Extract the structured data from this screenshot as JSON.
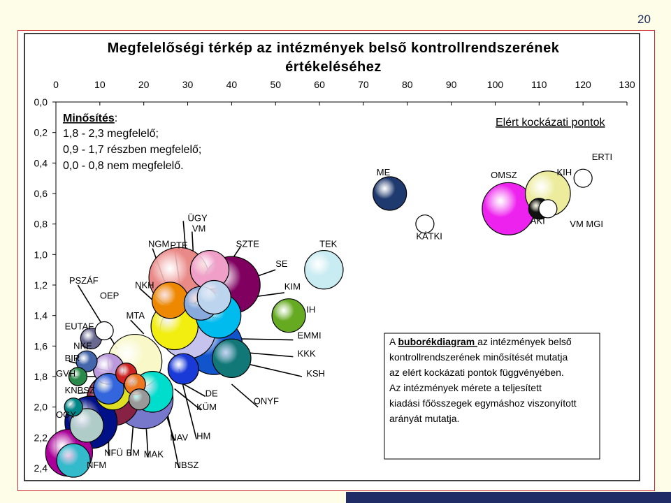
{
  "page_number": "20",
  "chart_data": {
    "type": "scatter",
    "title_line1": "Megfelelőségi térkép az intézmények belső kontrollrendszerének",
    "title_line2": "értékeléséhez",
    "x_ticks": [
      "0",
      "10",
      "20",
      "30",
      "40",
      "50",
      "60",
      "70",
      "80",
      "90",
      "100",
      "110",
      "120",
      "130"
    ],
    "y_ticks": [
      "0,0",
      "0,2",
      "0,4",
      "0,6",
      "0,8",
      "1,0",
      "1,2",
      "1,4",
      "1,6",
      "1,8",
      "2,0",
      "2,2",
      "2,4"
    ],
    "xlim": [
      0,
      130
    ],
    "ylim": [
      0,
      2.4
    ],
    "y_axis_inverted": true,
    "grid": false,
    "legend_box": {
      "title": "Minősítés",
      "title_suffix": ":",
      "lines": [
        "1,8 - 2,3 megfelelő;",
        "0,9 - 1,7 részben megfelelő;",
        "0,0 - 0,8 nem megfelelő."
      ]
    },
    "x_axis_title": "Elért kockázati pontok",
    "annotation": {
      "pre": "A ",
      "underlined": "buborékdiagram ",
      "post": "az intézmények belső",
      "lines": [
        "kontrollrendszerének minősítését mutatja",
        "az elért kockázati pontok függvényében.",
        "Az intézmények mérete a teljesített",
        "kiadási főösszegek egymáshoz viszonyított",
        "arányát mutatja."
      ]
    },
    "bubbles": [
      {
        "x": 76,
        "y": 0.6,
        "size": 5,
        "color": "#1f3a6e"
      },
      {
        "x": 112,
        "y": 0.6,
        "size": 10,
        "color": "#ecec9c"
      },
      {
        "x": 103,
        "y": 0.7,
        "size": 14,
        "color": "#ee22ee"
      },
      {
        "x": 110,
        "y": 0.7,
        "size": 3,
        "color": "#111111"
      },
      {
        "x": 120,
        "y": 0.5,
        "size": 2,
        "color": "#ffffff"
      },
      {
        "x": 112,
        "y": 0.7,
        "size": 2,
        "color": "#ffffff"
      },
      {
        "x": 84,
        "y": 0.8,
        "size": 2,
        "color": "#ffffff"
      },
      {
        "x": 61,
        "y": 1.1,
        "size": 7,
        "color": "#c8ecf2"
      },
      {
        "x": 40,
        "y": 1.2,
        "size": 17,
        "color": "#800060"
      },
      {
        "x": 36,
        "y": 1.6,
        "size": 17,
        "color": "#1055cc"
      },
      {
        "x": 28,
        "y": 1.15,
        "size": 19,
        "color": "#ea8a88"
      },
      {
        "x": 35,
        "y": 1.1,
        "size": 7,
        "color": "#f0a0c8"
      },
      {
        "x": 30,
        "y": 1.5,
        "size": 16,
        "color": "#c6c4ee"
      },
      {
        "x": 37,
        "y": 1.4,
        "size": 10,
        "color": "#00bbee"
      },
      {
        "x": 26,
        "y": 1.3,
        "size": 6,
        "color": "#ee8800"
      },
      {
        "x": 33,
        "y": 1.32,
        "size": 5,
        "color": "#88aadd"
      },
      {
        "x": 53,
        "y": 1.4,
        "size": 5,
        "color": "#66aa22"
      },
      {
        "x": 40,
        "y": 1.68,
        "size": 7,
        "color": "#117777"
      },
      {
        "x": 27,
        "y": 1.47,
        "size": 11,
        "color": "#f2ee10"
      },
      {
        "x": 18,
        "y": 1.7,
        "size": 15,
        "color": "#f8f8c8"
      },
      {
        "x": 20,
        "y": 1.95,
        "size": 18,
        "color": "#7777cc"
      },
      {
        "x": 13,
        "y": 1.95,
        "size": 14,
        "color": "#882244"
      },
      {
        "x": 8,
        "y": 2.1,
        "size": 14,
        "color": "#001188"
      },
      {
        "x": 12,
        "y": 1.75,
        "size": 4,
        "color": "#bb99dd"
      },
      {
        "x": 16,
        "y": 1.78,
        "size": 3,
        "color": "#cc2222"
      },
      {
        "x": 22,
        "y": 1.9,
        "size": 8,
        "color": "#00ddcc"
      },
      {
        "x": 18,
        "y": 1.85,
        "size": 3,
        "color": "#ee7722"
      },
      {
        "x": 7,
        "y": 1.7,
        "size": 3,
        "color": "#4466aa"
      },
      {
        "x": 4,
        "y": 2.0,
        "size": 2,
        "color": "#008888"
      },
      {
        "x": 13,
        "y": 1.9,
        "size": 6,
        "color": "#dede22"
      },
      {
        "x": 12,
        "y": 1.88,
        "size": 4,
        "color": "#3366dd"
      },
      {
        "x": 19,
        "y": 1.95,
        "size": 3,
        "color": "#999999"
      },
      {
        "x": 7,
        "y": 2.12,
        "size": 5,
        "color": "#b0ccc8"
      },
      {
        "x": 3,
        "y": 2.3,
        "size": 11,
        "color": "#aa0099"
      },
      {
        "x": 4,
        "y": 2.35,
        "size": 5,
        "color": "#33bbcc"
      },
      {
        "x": 29,
        "y": 1.75,
        "size": 4,
        "color": "#1a3ad8"
      },
      {
        "x": 8,
        "y": 1.55,
        "size": 3,
        "color": "#696890"
      },
      {
        "x": 11,
        "y": 1.5,
        "size": 2,
        "color": "#ffffff"
      },
      {
        "x": 36,
        "y": 1.28,
        "size": 5,
        "color": "#bcd4ee"
      },
      {
        "x": 5,
        "y": 1.8,
        "size": 2,
        "color": "#2a8a4a"
      }
    ],
    "labels": [
      {
        "text": "ME",
        "x": 73,
        "y": 0.48
      },
      {
        "text": "OMSZ",
        "x": 99,
        "y": 0.5
      },
      {
        "text": "KIH",
        "x": 114,
        "y": 0.48
      },
      {
        "text": "ERTI",
        "x": 122,
        "y": 0.38
      },
      {
        "text": "KÁTKI",
        "x": 82,
        "y": 0.9
      },
      {
        "text": "AKI",
        "x": 108,
        "y": 0.8
      },
      {
        "text": "VM MGI",
        "x": 117,
        "y": 0.82
      },
      {
        "text": "ÜGY",
        "x": 30,
        "y": 0.78
      },
      {
        "text": "VM",
        "x": 31,
        "y": 0.85
      },
      {
        "text": "NGM",
        "x": 21,
        "y": 0.95
      },
      {
        "text": "PTE",
        "x": 26,
        "y": 0.96
      },
      {
        "text": "SZTE",
        "x": 41,
        "y": 0.95
      },
      {
        "text": "TEK",
        "x": 60,
        "y": 0.95
      },
      {
        "text": "SE",
        "x": 50,
        "y": 1.08
      },
      {
        "text": "KIM",
        "x": 52,
        "y": 1.23
      },
      {
        "text": "IH",
        "x": 57,
        "y": 1.38
      },
      {
        "text": "EMMI",
        "x": 55,
        "y": 1.55
      },
      {
        "text": "KKK",
        "x": 55,
        "y": 1.67
      },
      {
        "text": "KSH",
        "x": 57,
        "y": 1.8
      },
      {
        "text": "PSZÁF",
        "x": 3,
        "y": 1.19
      },
      {
        "text": "OEP",
        "x": 10,
        "y": 1.29
      },
      {
        "text": "NKH",
        "x": 18,
        "y": 1.22
      },
      {
        "text": "MTA",
        "x": 16,
        "y": 1.42
      },
      {
        "text": "EUTAF",
        "x": 2,
        "y": 1.49
      },
      {
        "text": "NKE",
        "x": 4,
        "y": 1.62
      },
      {
        "text": "BIR",
        "x": 2,
        "y": 1.7
      },
      {
        "text": "GVH",
        "x": 0,
        "y": 1.8
      },
      {
        "text": "KNBSZ",
        "x": 2,
        "y": 1.91
      },
      {
        "text": "OGY",
        "x": 0,
        "y": 2.07
      },
      {
        "text": "NFÜ",
        "x": 11,
        "y": 2.32
      },
      {
        "text": "BM",
        "x": 16,
        "y": 2.32
      },
      {
        "text": "MAK",
        "x": 20,
        "y": 2.33
      },
      {
        "text": "NFM",
        "x": 7,
        "y": 2.4
      },
      {
        "text": "NBSZ",
        "x": 27,
        "y": 2.4
      },
      {
        "text": "NAV",
        "x": 26,
        "y": 2.22
      },
      {
        "text": "HM",
        "x": 32,
        "y": 2.21
      },
      {
        "text": "DE",
        "x": 34,
        "y": 1.93
      },
      {
        "text": "KÜM",
        "x": 32,
        "y": 2.02
      },
      {
        "text": "ONYF",
        "x": 45,
        "y": 1.98
      }
    ],
    "leader_lines": [
      {
        "x1": 22,
        "y1": 0.96,
        "x2": 26,
        "y2": 1.28
      },
      {
        "x1": 27,
        "y1": 0.96,
        "x2": 29,
        "y2": 1.35
      },
      {
        "x1": 29,
        "y1": 0.78,
        "x2": 31,
        "y2": 1.5
      },
      {
        "x1": 31,
        "y1": 0.85,
        "x2": 32,
        "y2": 1.4
      },
      {
        "x1": 42,
        "y1": 0.95,
        "x2": 35,
        "y2": 1.25
      },
      {
        "x1": 50,
        "y1": 1.1,
        "x2": 43,
        "y2": 1.17
      },
      {
        "x1": 52,
        "y1": 1.25,
        "x2": 34,
        "y2": 1.32
      },
      {
        "x1": 56,
        "y1": 1.38,
        "x2": 54,
        "y2": 1.4
      },
      {
        "x1": 54,
        "y1": 1.56,
        "x2": 37,
        "y2": 1.55
      },
      {
        "x1": 54,
        "y1": 1.67,
        "x2": 42,
        "y2": 1.64
      },
      {
        "x1": 56,
        "y1": 1.8,
        "x2": 41,
        "y2": 1.7
      },
      {
        "x1": 5,
        "y1": 1.2,
        "x2": 14,
        "y2": 1.62
      },
      {
        "x1": 19,
        "y1": 1.22,
        "x2": 24,
        "y2": 1.35
      },
      {
        "x1": 17,
        "y1": 1.43,
        "x2": 20,
        "y2": 1.52
      },
      {
        "x1": 7,
        "y1": 1.62,
        "x2": 11,
        "y2": 1.55
      },
      {
        "x1": 3,
        "y1": 1.7,
        "x2": 14,
        "y2": 1.78
      },
      {
        "x1": 3,
        "y1": 1.8,
        "x2": 16,
        "y2": 1.8
      },
      {
        "x1": 5,
        "y1": 1.91,
        "x2": 10,
        "y2": 1.9
      },
      {
        "x1": 2,
        "y1": 2.08,
        "x2": 6,
        "y2": 2.12
      },
      {
        "x1": 2,
        "y1": 2.3,
        "x2": 5,
        "y2": 2.35
      },
      {
        "x1": 12,
        "y1": 2.32,
        "x2": 12,
        "y2": 1.92
      },
      {
        "x1": 17,
        "y1": 2.32,
        "x2": 18,
        "y2": 1.98
      },
      {
        "x1": 21,
        "y1": 2.33,
        "x2": 20,
        "y2": 1.88
      },
      {
        "x1": 28,
        "y1": 2.4,
        "x2": 24,
        "y2": 1.85
      },
      {
        "x1": 27,
        "y1": 2.22,
        "x2": 24,
        "y2": 1.95
      },
      {
        "x1": 32,
        "y1": 2.21,
        "x2": 28,
        "y2": 1.75
      },
      {
        "x1": 34,
        "y1": 1.93,
        "x2": 26,
        "y2": 1.8
      },
      {
        "x1": 33,
        "y1": 2.02,
        "x2": 27,
        "y2": 1.88
      },
      {
        "x1": 46,
        "y1": 2.0,
        "x2": 40,
        "y2": 1.85
      }
    ]
  }
}
